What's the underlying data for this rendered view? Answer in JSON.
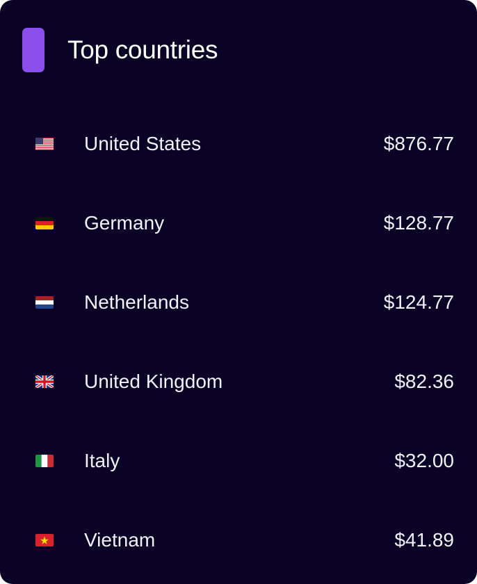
{
  "header": {
    "title": "Top countries",
    "accent_color": "#8a4fec"
  },
  "countries": [
    {
      "name": "United States",
      "amount": "$876.77",
      "flag": "us-flag"
    },
    {
      "name": "Germany",
      "amount": "$128.77",
      "flag": "de-flag"
    },
    {
      "name": "Netherlands",
      "amount": "$124.77",
      "flag": "nl-flag"
    },
    {
      "name": "United Kingdom",
      "amount": "$82.36",
      "flag": "gb-flag"
    },
    {
      "name": "Italy",
      "amount": "$32.00",
      "flag": "it-flag"
    },
    {
      "name": "Vietnam",
      "amount": "$41.89",
      "flag": "vn-flag"
    }
  ],
  "colors": {
    "background": "#0a0325",
    "text": "#f2f0fa"
  }
}
